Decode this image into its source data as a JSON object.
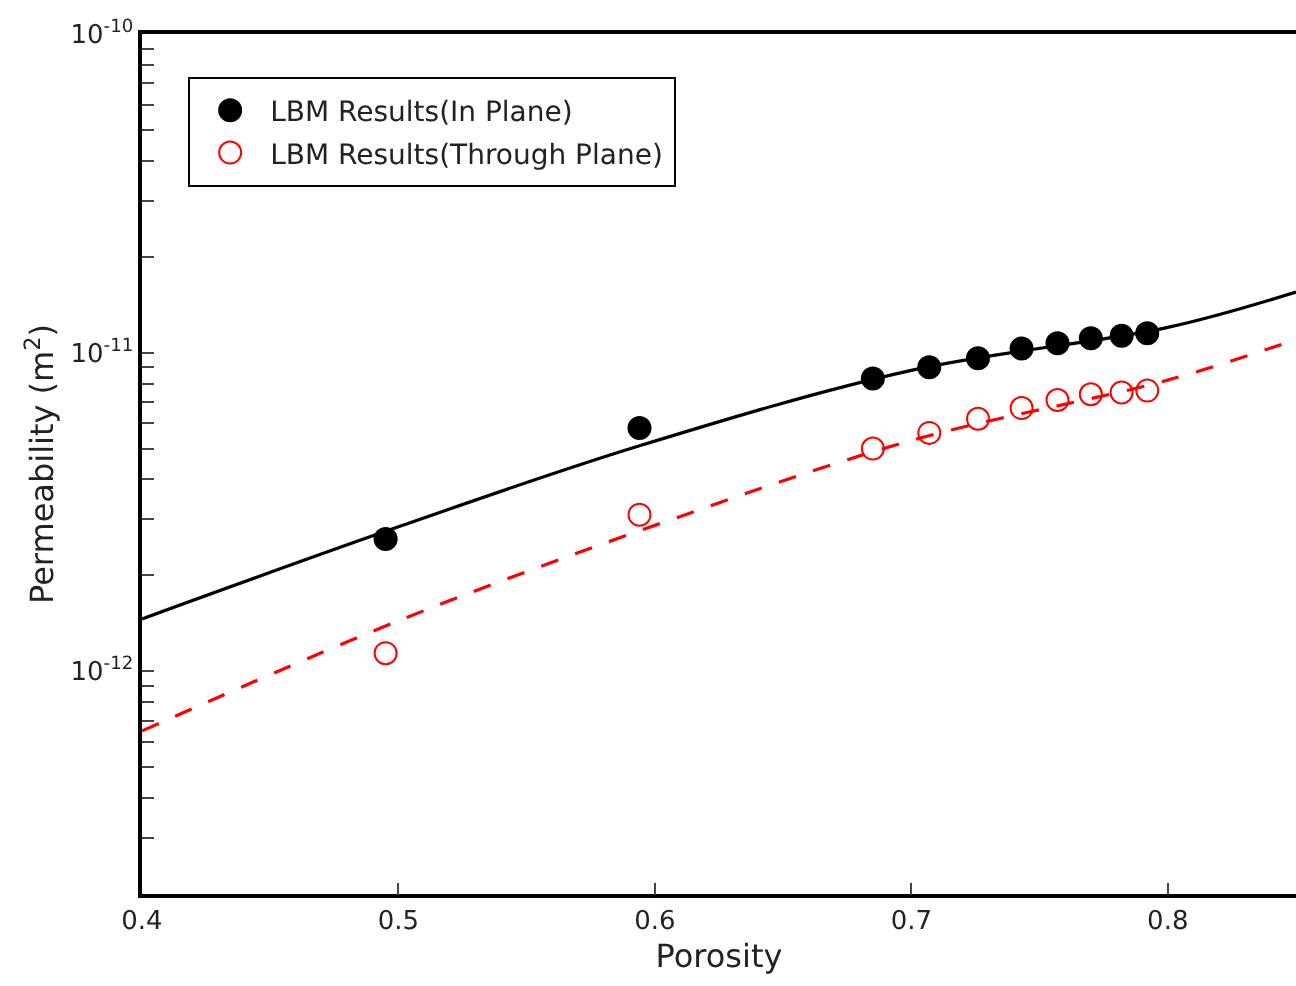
{
  "chart_data": {
    "type": "scatter",
    "xlabel": "Porosity",
    "ylabel": "Permeability (m$^{2}$)",
    "log": "y",
    "xlim": [
      0.4,
      0.85
    ],
    "xticks": [
      0.4,
      0.5,
      0.6,
      0.7,
      0.8
    ],
    "ylim": [
      2e-13,
      1e-10
    ],
    "yticks": [
      {
        "value": 3e-13,
        "label": null
      },
      {
        "value": 4e-13,
        "label": null
      },
      {
        "value": 5e-13,
        "label": null
      },
      {
        "value": 6e-13,
        "label": null
      },
      {
        "value": 7e-13,
        "label": null
      },
      {
        "value": 8e-13,
        "label": null
      },
      {
        "value": 9e-13,
        "label": null
      },
      {
        "value": 1e-12,
        "label": "10$^{-12}$"
      },
      {
        "value": 2e-12,
        "label": null
      },
      {
        "value": 3e-12,
        "label": null
      },
      {
        "value": 4e-12,
        "label": null
      },
      {
        "value": 5e-12,
        "label": null
      },
      {
        "value": 6e-12,
        "label": null
      },
      {
        "value": 7e-12,
        "label": null
      },
      {
        "value": 8e-12,
        "label": null
      },
      {
        "value": 9e-12,
        "label": null
      },
      {
        "value": 1e-11,
        "label": "10$^{-11}$"
      },
      {
        "value": 2e-11,
        "label": null
      },
      {
        "value": 3e-11,
        "label": null
      },
      {
        "value": 4e-11,
        "label": null
      },
      {
        "value": 5e-11,
        "label": null
      },
      {
        "value": 6e-11,
        "label": null
      },
      {
        "value": 7e-11,
        "label": null
      },
      {
        "value": 8e-11,
        "label": null
      },
      {
        "value": 9e-11,
        "label": null
      },
      {
        "value": 1e-10,
        "label": "10$^{-10}$"
      }
    ],
    "legend": "top left",
    "series": [
      {
        "name": "LBM Results(In Plane)",
        "marker": "circle",
        "color": "#000000",
        "x": [
          0.495,
          0.594,
          0.685,
          0.707,
          0.726,
          0.743,
          0.757,
          0.77,
          0.782,
          0.792
        ],
        "values": [
          2.6e-12,
          5.8e-12,
          8.3e-12,
          9e-12,
          9.6e-12,
          1.03e-11,
          1.07e-11,
          1.11e-11,
          1.13e-11,
          1.15e-11
        ]
      },
      {
        "name": "LBM Results(Through Plane)",
        "marker": "circle",
        "color": "#ff0000",
        "x": [
          0.495,
          0.594,
          0.685,
          0.707,
          0.726,
          0.743,
          0.757,
          0.77,
          0.782,
          0.792
        ],
        "values": [
          1.14e-12,
          3.1e-12,
          5e-12,
          5.6e-12,
          6.2e-12,
          6.7e-12,
          7.1e-12,
          7.4e-12,
          7.5e-12,
          7.6e-12
        ]
      },
      {
        "type": "line",
        "line_style": "solid",
        "color": "#000000",
        "x": [
          0.4,
          0.5,
          0.594,
          0.7,
          0.8,
          0.85
        ],
        "values": [
          1.46e-12,
          2.84e-12,
          5.1e-12,
          8.8e-12,
          1.2e-11,
          1.55e-11
        ]
      },
      {
        "type": "line",
        "line_style": "dashed",
        "color": "#ff0000",
        "x": [
          0.4,
          0.5,
          0.6,
          0.7,
          0.8,
          0.85
        ],
        "values": [
          6.5e-13,
          1.44e-12,
          2.87e-12,
          5.3e-12,
          8.2e-12,
          1.1e-11
        ]
      }
    ]
  }
}
